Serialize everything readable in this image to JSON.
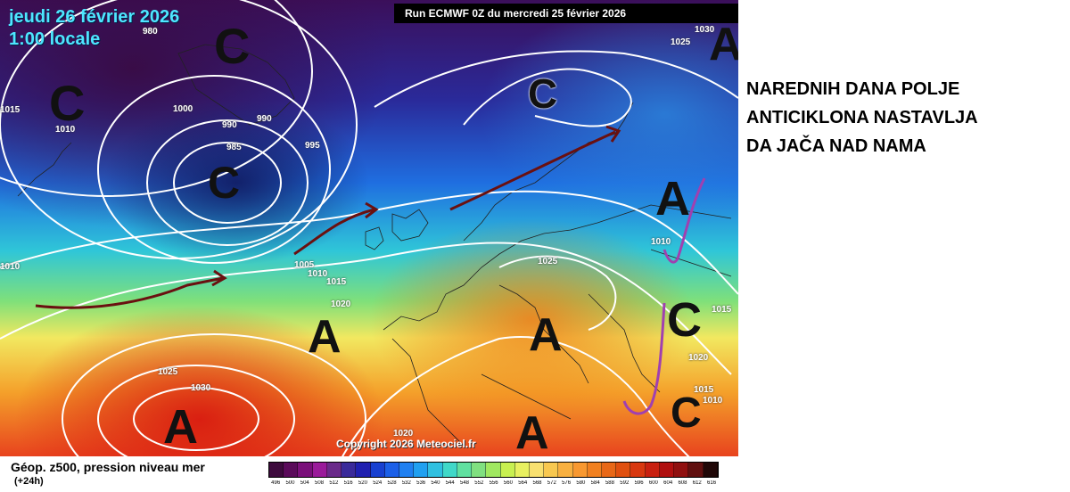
{
  "map": {
    "date_label": "jeudi 26 février 2026",
    "time_label": "1:00 locale",
    "run_label": "Run ECMWF 0Z du mercredi 25 février 2026",
    "copyright": "Copyright 2026 Meteociel.fr",
    "pressure_systems": [
      {
        "type": "C",
        "label": "C"
      },
      {
        "type": "C",
        "label": "C"
      },
      {
        "type": "C",
        "label": "C"
      },
      {
        "type": "C",
        "label": "C"
      },
      {
        "type": "A",
        "label": "A"
      },
      {
        "type": "A",
        "label": "A"
      },
      {
        "type": "A",
        "label": "A"
      },
      {
        "type": "A",
        "label": "A"
      },
      {
        "type": "A",
        "label": "A"
      },
      {
        "type": "A",
        "label": "A"
      },
      {
        "type": "C",
        "label": "C"
      },
      {
        "type": "C",
        "label": "C"
      }
    ],
    "isobar_labels": [
      "980",
      "1015",
      "1010",
      "1000",
      "990",
      "990",
      "985",
      "995",
      "1030",
      "1025",
      "1010",
      "1005",
      "1010",
      "1015",
      "1020",
      "1025",
      "1025",
      "1030",
      "1020",
      "1015",
      "1020",
      "1015",
      "1010",
      "1010"
    ]
  },
  "annotation": {
    "line1": "NAREDNIH DANA POLJE",
    "line2": "ANTICIKLONA NASTAVLJA",
    "line3": "DA JAČA NAD NAMA"
  },
  "legend": {
    "title": "Géop. z500, pression niveau mer",
    "subtitle": "(+24h)",
    "scale_values": [
      "496",
      "500",
      "504",
      "508",
      "512",
      "516",
      "520",
      "524",
      "528",
      "532",
      "536",
      "540",
      "544",
      "548",
      "552",
      "556",
      "560",
      "564",
      "568",
      "572",
      "576",
      "580",
      "584",
      "588",
      "592",
      "596",
      "600",
      "604",
      "608",
      "612",
      "616"
    ],
    "scale_colors": [
      "#3d0a3d",
      "#5a0a5a",
      "#7a0f7a",
      "#9a1a9a",
      "#6a2a8a",
      "#3a2a9a",
      "#2020b0",
      "#1840d0",
      "#1c60e8",
      "#2080f0",
      "#20a0f0",
      "#30c0e0",
      "#40d8c8",
      "#60e0a0",
      "#80e080",
      "#a0e860",
      "#c8f050",
      "#e8f060",
      "#f8e070",
      "#f8c850",
      "#f8b040",
      "#f89830",
      "#f08020",
      "#e86818",
      "#e05010",
      "#d83810",
      "#c82010",
      "#b01010",
      "#901010",
      "#601010",
      "#200808"
    ]
  }
}
